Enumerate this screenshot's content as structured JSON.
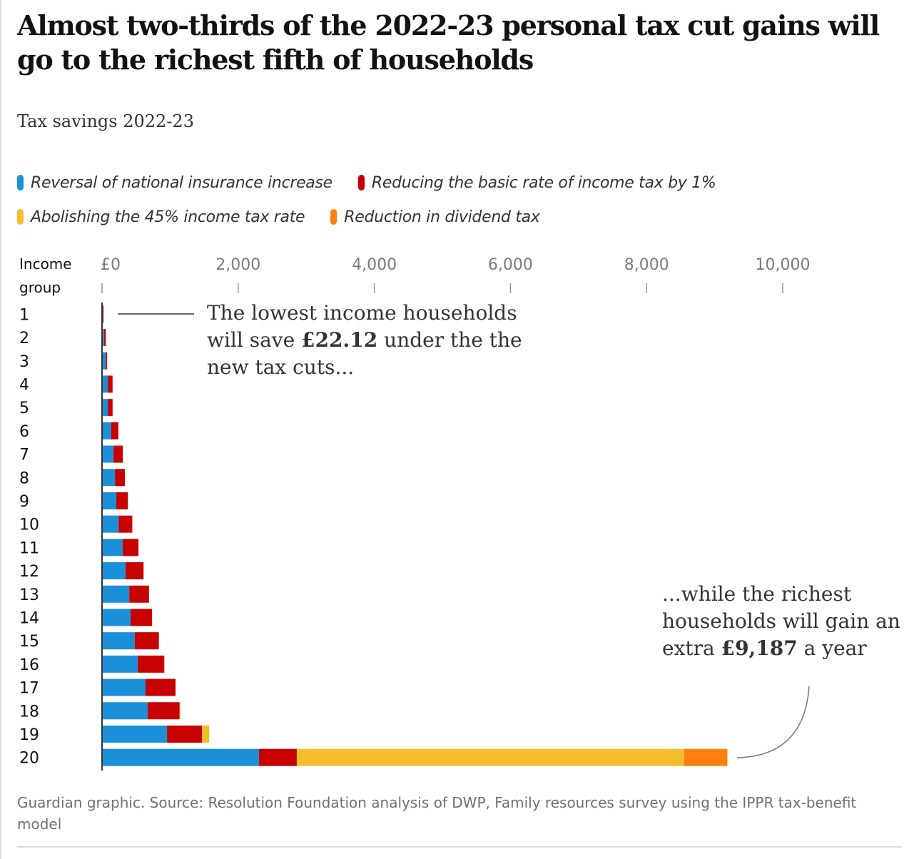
{
  "headline": "Almost two-thirds of the 2022-23 personal tax cut gains will go to the richest fifth of households",
  "subtitle": "Tax savings 2022-23",
  "legend": [
    {
      "label": "Reversal of national insurance increase",
      "color": "#1c8fd9"
    },
    {
      "label": "Reducing the basic rate of income tax by 1%",
      "color": "#c70000"
    },
    {
      "label": "Abolishing the 45% income tax rate",
      "color": "#f5bc2c"
    },
    {
      "label": "Reduction in dividend tax",
      "color": "#ff7f0f"
    }
  ],
  "axis_title_line1": "Income",
  "axis_title_line2": "group",
  "annotations": {
    "low": {
      "pre": "The lowest income households will save ",
      "bold": "£22.12",
      "post": " under the the new tax cuts..."
    },
    "high": {
      "pre": "...while the richest households will gain an extra ",
      "bold": "£9,187",
      "post": " a year"
    }
  },
  "footer": "Guardian graphic. Source: Resolution Foundation analysis of DWP, Family resources survey using the IPPR tax-benefit model",
  "chart_data": {
    "type": "bar",
    "orientation": "horizontal",
    "stacked": true,
    "title": "Tax savings 2022-23",
    "xlabel": "",
    "ylabel": "Income group",
    "xlim": [
      0,
      10000
    ],
    "x_ticks": [
      0,
      2000,
      4000,
      6000,
      8000,
      10000
    ],
    "x_tick_labels": [
      "£0",
      "2,000",
      "4,000",
      "6,000",
      "8,000",
      "10,000"
    ],
    "grid": false,
    "legend_position": "top",
    "categories": [
      "1",
      "2",
      "3",
      "4",
      "5",
      "6",
      "7",
      "8",
      "9",
      "10",
      "11",
      "12",
      "13",
      "14",
      "15",
      "16",
      "17",
      "18",
      "19",
      "20"
    ],
    "series": [
      {
        "name": "Reversal of national insurance increase",
        "color": "#1c8fd9",
        "values": [
          10,
          30,
          55,
          85,
          85,
          135,
          170,
          190,
          210,
          245,
          305,
          345,
          400,
          420,
          480,
          525,
          640,
          670,
          955,
          2306
        ]
      },
      {
        "name": "Reducing the basic rate of income tax by 1%",
        "color": "#c70000",
        "values": [
          12,
          25,
          20,
          70,
          70,
          105,
          135,
          145,
          170,
          200,
          230,
          265,
          290,
          315,
          355,
          390,
          440,
          470,
          515,
          555
        ]
      },
      {
        "name": "Abolishing the 45% income tax rate",
        "color": "#f5bc2c",
        "values": [
          0,
          0,
          0,
          0,
          0,
          0,
          0,
          0,
          0,
          0,
          0,
          0,
          0,
          0,
          0,
          0,
          0,
          5,
          105,
          5692
        ]
      },
      {
        "name": "Reduction in dividend tax",
        "color": "#ff7f0f",
        "values": [
          0,
          0,
          0,
          0,
          0,
          0,
          0,
          0,
          0,
          0,
          0,
          0,
          0,
          0,
          0,
          0,
          0,
          0,
          0,
          634
        ]
      }
    ],
    "annotations": [
      {
        "category": "1",
        "text": "The lowest income households will save £22.12 under the the new tax cuts..."
      },
      {
        "category": "20",
        "text": "...while the richest households will gain an extra £9,187 a year"
      }
    ]
  }
}
